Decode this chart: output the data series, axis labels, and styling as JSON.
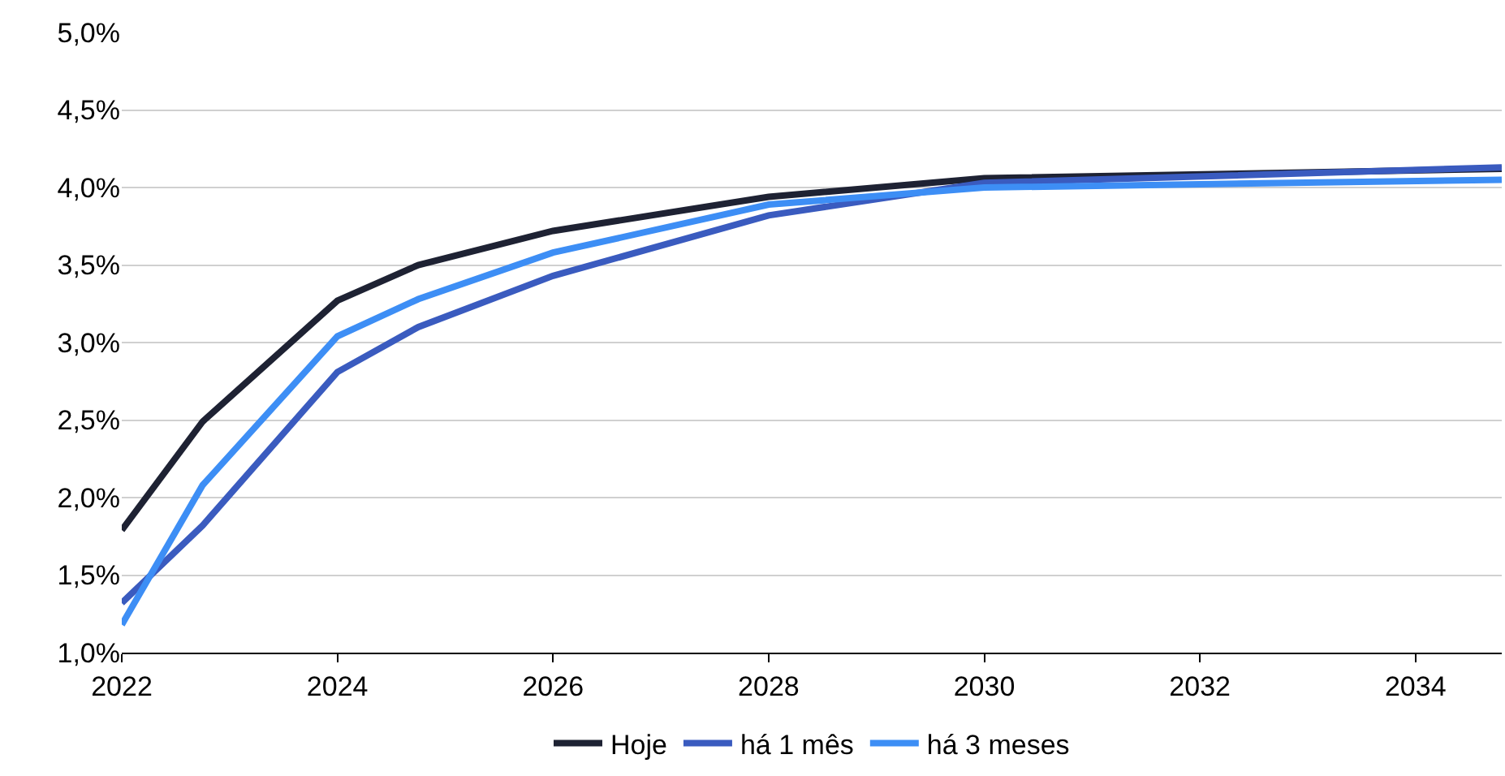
{
  "chart_data": {
    "type": "line",
    "x": [
      2022,
      2022.75,
      2024,
      2024.75,
      2026,
      2028,
      2030,
      2034.8
    ],
    "series": [
      {
        "name": "Hoje",
        "color": "#1e2233",
        "values": [
          1.79,
          2.49,
          3.27,
          3.5,
          3.72,
          3.94,
          4.06,
          4.12
        ]
      },
      {
        "name": "há 1 mês",
        "color": "#3a5bbf",
        "values": [
          1.32,
          1.82,
          2.81,
          3.1,
          3.43,
          3.82,
          4.03,
          4.13
        ]
      },
      {
        "name": "há 3 meses",
        "color": "#3d8ef5",
        "values": [
          1.18,
          2.08,
          3.04,
          3.28,
          3.58,
          3.89,
          4.0,
          4.05
        ]
      }
    ],
    "xlim": [
      2022,
      2034.8
    ],
    "xticks": [
      2022,
      2024,
      2026,
      2028,
      2030,
      2032,
      2034
    ],
    "ylim": [
      1.0,
      5.0
    ],
    "yticks": [
      {
        "value": 1.0,
        "label": "1,0%"
      },
      {
        "value": 1.5,
        "label": "1,5%"
      },
      {
        "value": 2.0,
        "label": "2,0%"
      },
      {
        "value": 2.5,
        "label": "2,5%"
      },
      {
        "value": 3.0,
        "label": "3,0%"
      },
      {
        "value": 3.5,
        "label": "3,5%"
      },
      {
        "value": 4.0,
        "label": "4,0%"
      },
      {
        "value": 4.5,
        "label": "4,5%"
      },
      {
        "value": 5.0,
        "label": "5,0%"
      }
    ],
    "grid": "y",
    "legend": "bottom",
    "marker": "none",
    "line_style": "solid"
  }
}
